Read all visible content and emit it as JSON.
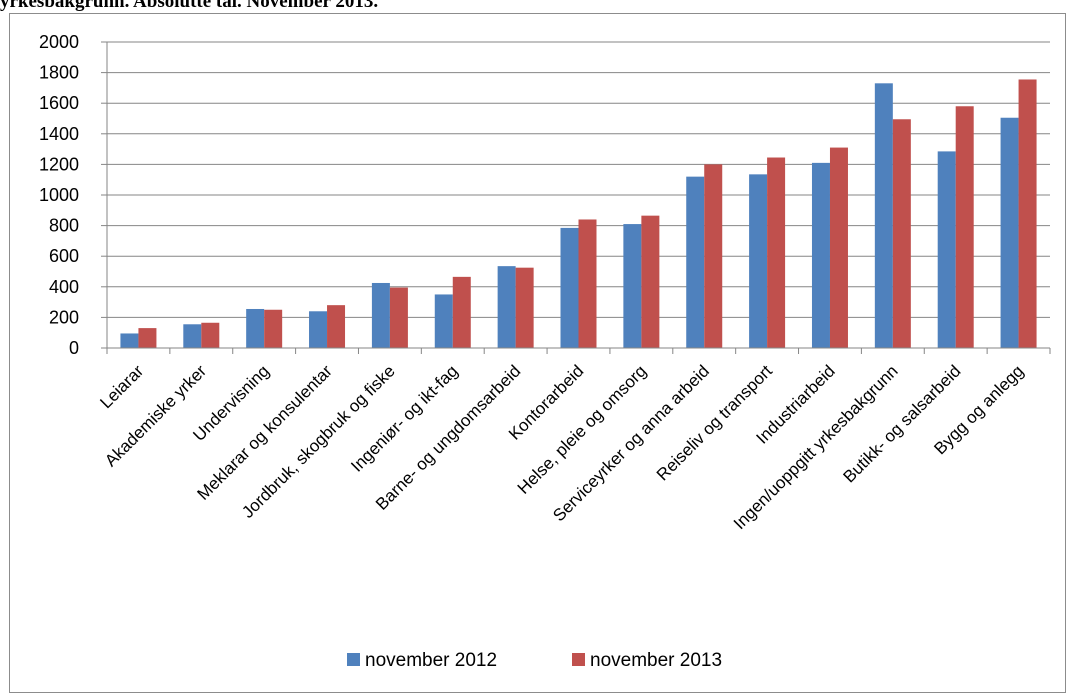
{
  "heading": "yrkesbakgrunn. Absolutte tal. November 2013.",
  "colors": {
    "series1": "#4f81bd",
    "series2": "#c0504d",
    "grid": "#868686",
    "axis": "#868686"
  },
  "chart_data": {
    "type": "bar",
    "categories": [
      "Leiarar",
      "Akademiske yrker",
      "Undervisning",
      "Meklarar og konsulentar",
      "Jordbruk, skogbruk og fiske",
      "Ingeniør- og ikt-fag",
      "Barne- og ungdomsarbeid",
      "Kontorarbeid",
      "Helse, pleie og omsorg",
      "Serviceyrker og anna arbeid",
      "Reiseliv og transport",
      "Industriarbeid",
      "Ingen/uoppgitt yrkesbakgrunn",
      "Butikk- og salsarbeid",
      "Bygg og anlegg"
    ],
    "series": [
      {
        "name": "november 2012",
        "values": [
          95,
          155,
          255,
          240,
          425,
          350,
          535,
          785,
          810,
          1120,
          1135,
          1210,
          1730,
          1285,
          1505
        ]
      },
      {
        "name": "november 2013",
        "values": [
          130,
          165,
          250,
          280,
          395,
          465,
          525,
          840,
          865,
          1200,
          1245,
          1310,
          1495,
          1580,
          1755
        ]
      }
    ],
    "yticks": [
      "0",
      "200",
      "400",
      "600",
      "800",
      "1000",
      "1200",
      "1400",
      "1600",
      "1800",
      "2000"
    ],
    "ylim": [
      0,
      2000
    ],
    "grid": true,
    "legend": "bottom"
  }
}
